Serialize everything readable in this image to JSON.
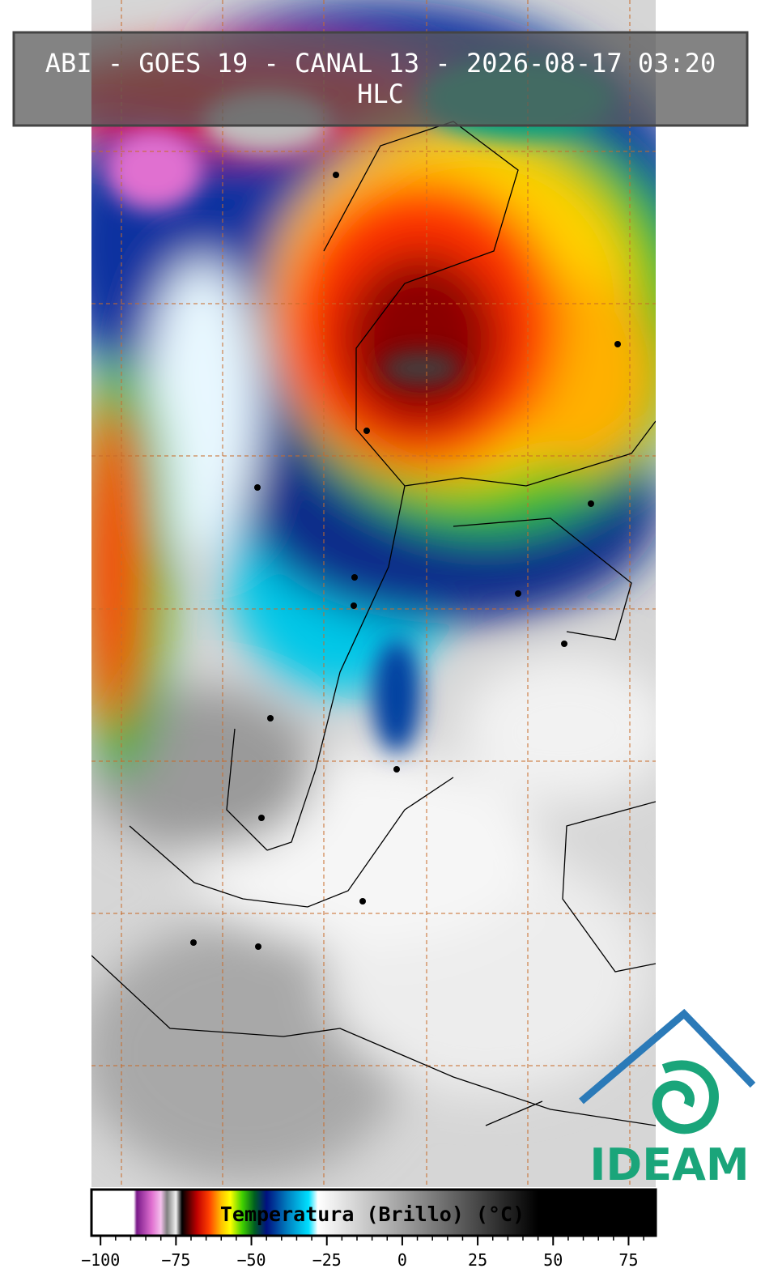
{
  "header": {
    "title": "ABI - GOES 19 - CANAL 13 - 2026-08-17 03:20",
    "subtitle": "HLC"
  },
  "logo": {
    "text": "IDEAM"
  },
  "colorbar": {
    "label": "Temperatura (Brillo) (°C)",
    "lim": [
      -103,
      84
    ],
    "minor_tick_step": 5,
    "ticks": [
      {
        "value": -100,
        "label": "−100"
      },
      {
        "value": -75,
        "label": "−75"
      },
      {
        "value": -50,
        "label": "−50"
      },
      {
        "value": -25,
        "label": "−25"
      },
      0,
      25,
      50,
      75
    ],
    "stops": [
      {
        "value": -103,
        "color": "#ffffff"
      },
      {
        "value": -89,
        "color": "#ffffff"
      },
      {
        "value": -88,
        "color": "#7a1a8a"
      },
      {
        "value": -83,
        "color": "#e070d0"
      },
      {
        "value": -80,
        "color": "#f4c0ec"
      },
      {
        "value": -78,
        "color": "#808080"
      },
      {
        "value": -75,
        "color": "#f0f0f0"
      },
      {
        "value": -73,
        "color": "#000000"
      },
      {
        "value": -68,
        "color": "#c00000"
      },
      {
        "value": -64,
        "color": "#ff4000"
      },
      {
        "value": -60,
        "color": "#ffc000"
      },
      {
        "value": -57,
        "color": "#ffff00"
      },
      {
        "value": -53,
        "color": "#40d000"
      },
      {
        "value": -49,
        "color": "#006020"
      },
      {
        "value": -45,
        "color": "#001080"
      },
      {
        "value": -38,
        "color": "#0080c0"
      },
      {
        "value": -31,
        "color": "#00e0ff"
      },
      {
        "value": -28,
        "color": "#ffffff"
      },
      {
        "value": 0,
        "color": "#a0a0a0"
      },
      {
        "value": 45,
        "color": "#000000"
      },
      {
        "value": 84,
        "color": "#000000"
      }
    ]
  }
}
